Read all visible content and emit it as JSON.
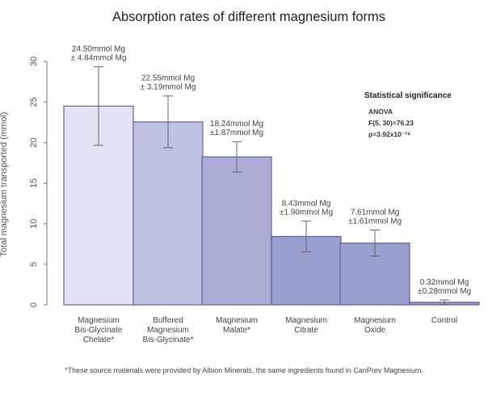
{
  "chart_data": {
    "type": "bar",
    "title": "Absorption rates of different magnesium forms",
    "ylabel": "Total magnesium transported (mmol)",
    "xlabel": "",
    "ylim": [
      0,
      30
    ],
    "yticks": [
      0,
      5,
      10,
      15,
      20,
      25,
      30
    ],
    "categories": [
      [
        "Magnesium",
        "Bis-Glycinate",
        "Chelate*"
      ],
      [
        "Buffered",
        "Magnesium",
        "Bis-Glycinate*"
      ],
      [
        "Magnesium",
        "Malate*"
      ],
      [
        "Magnesium",
        "Citrate"
      ],
      [
        "Magnesium",
        "Oxide"
      ],
      [
        "Control"
      ]
    ],
    "values": [
      24.5,
      22.55,
      18.24,
      8.43,
      7.61,
      0.32
    ],
    "errors": [
      4.84,
      3.19,
      1.87,
      1.9,
      1.61,
      0.28
    ],
    "value_labels": [
      [
        "24.50mmol Mg",
        "± 4.84mmol Mg"
      ],
      [
        "22.55mmol Mg",
        "± 3.19mmol Mg"
      ],
      [
        "18.24mmol Mg",
        "±1.87mmol Mg"
      ],
      [
        "8.43mmol Mg",
        "±1.90mmol Mg"
      ],
      [
        "7.61mmol Mg",
        "±1.61mmol Mg"
      ],
      [
        "0.32mmol Mg",
        "±0.28mmol Mg"
      ]
    ],
    "colors": [
      "#e1e3f2",
      "#bfc2e0",
      "#aaaed6",
      "#9b9fcf",
      "#9b9fcf",
      "#9b9fcf"
    ],
    "bar_edge_color": "#55598f",
    "error_color": "#666666",
    "grid": false,
    "legend": "none"
  },
  "annotation": {
    "title": "Statistical significance",
    "lines": [
      "ANOVA",
      "F(5, 30)=76.23",
      "p=3.92x10⁻¹⁶"
    ]
  },
  "footnote": "*These source materials were provided by Albion Minerals, the same ingredients found in CanPrev Magnesium."
}
